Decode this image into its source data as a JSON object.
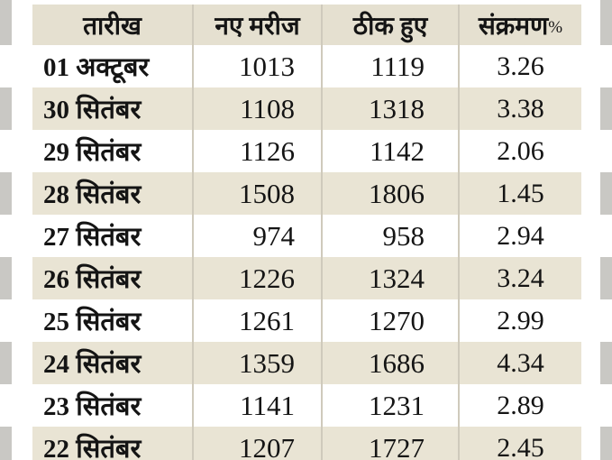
{
  "colors": {
    "stripe_bg": "#e9e4d4",
    "header_bg": "#e5e0d0",
    "row_bg": "#ffffff",
    "edge_gray": "#c9c8c4",
    "divider": "#cfcabc",
    "text": "#141414"
  },
  "table": {
    "headers": {
      "date": "तारीख",
      "new_cases": "नए मरीज",
      "recovered": "ठीक हुए",
      "infection": "संक्रमण",
      "infection_suffix": "%"
    }
  },
  "chart_data": {
    "type": "table",
    "columns": [
      "तारीख",
      "नए मरीज",
      "ठीक हुए",
      "संक्रमण%"
    ],
    "rows": [
      [
        "01 अक्टूबर",
        1013,
        1119,
        3.26
      ],
      [
        "30 सितंबर",
        1108,
        1318,
        3.38
      ],
      [
        "29 सितंबर",
        1126,
        1142,
        2.06
      ],
      [
        "28 सितंबर",
        1508,
        1806,
        1.45
      ],
      [
        "27 सितंबर",
        974,
        958,
        2.94
      ],
      [
        "26 सितंबर",
        1226,
        1324,
        3.24
      ],
      [
        "25 सितंबर",
        1261,
        1270,
        2.99
      ],
      [
        "24 सितंबर",
        1359,
        1686,
        4.34
      ],
      [
        "23 सितंबर",
        1141,
        1231,
        2.89
      ],
      [
        "22 सितंबर",
        1207,
        1727,
        2.45
      ]
    ]
  }
}
